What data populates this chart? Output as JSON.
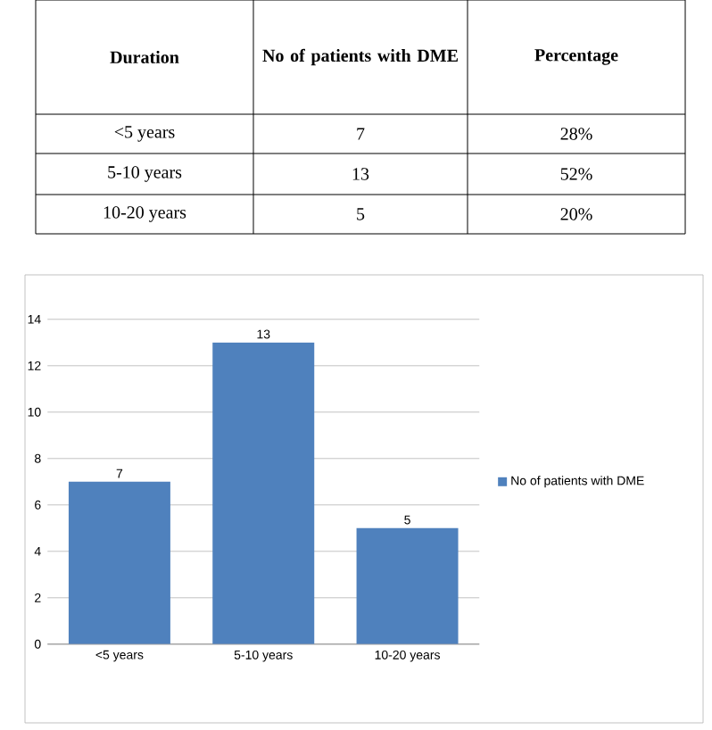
{
  "chart_data": {
    "type": "bar",
    "categories": [
      "<5 years",
      "5-10 years",
      "10-20 years"
    ],
    "series": [
      {
        "name": "No of patients with DME",
        "color": "#4f81bd",
        "values": [
          7,
          13,
          5
        ]
      }
    ],
    "ylim": [
      0,
      14
    ],
    "yticks": [
      0,
      2,
      4,
      6,
      8,
      10,
      12,
      14
    ],
    "grid": "y",
    "legend": "right",
    "data_labels": true,
    "annotations": [
      "Duration",
      "No of patients with DME",
      "Percentage",
      "7",
      "28%",
      "13",
      "52%",
      "5",
      "20%"
    ]
  }
}
